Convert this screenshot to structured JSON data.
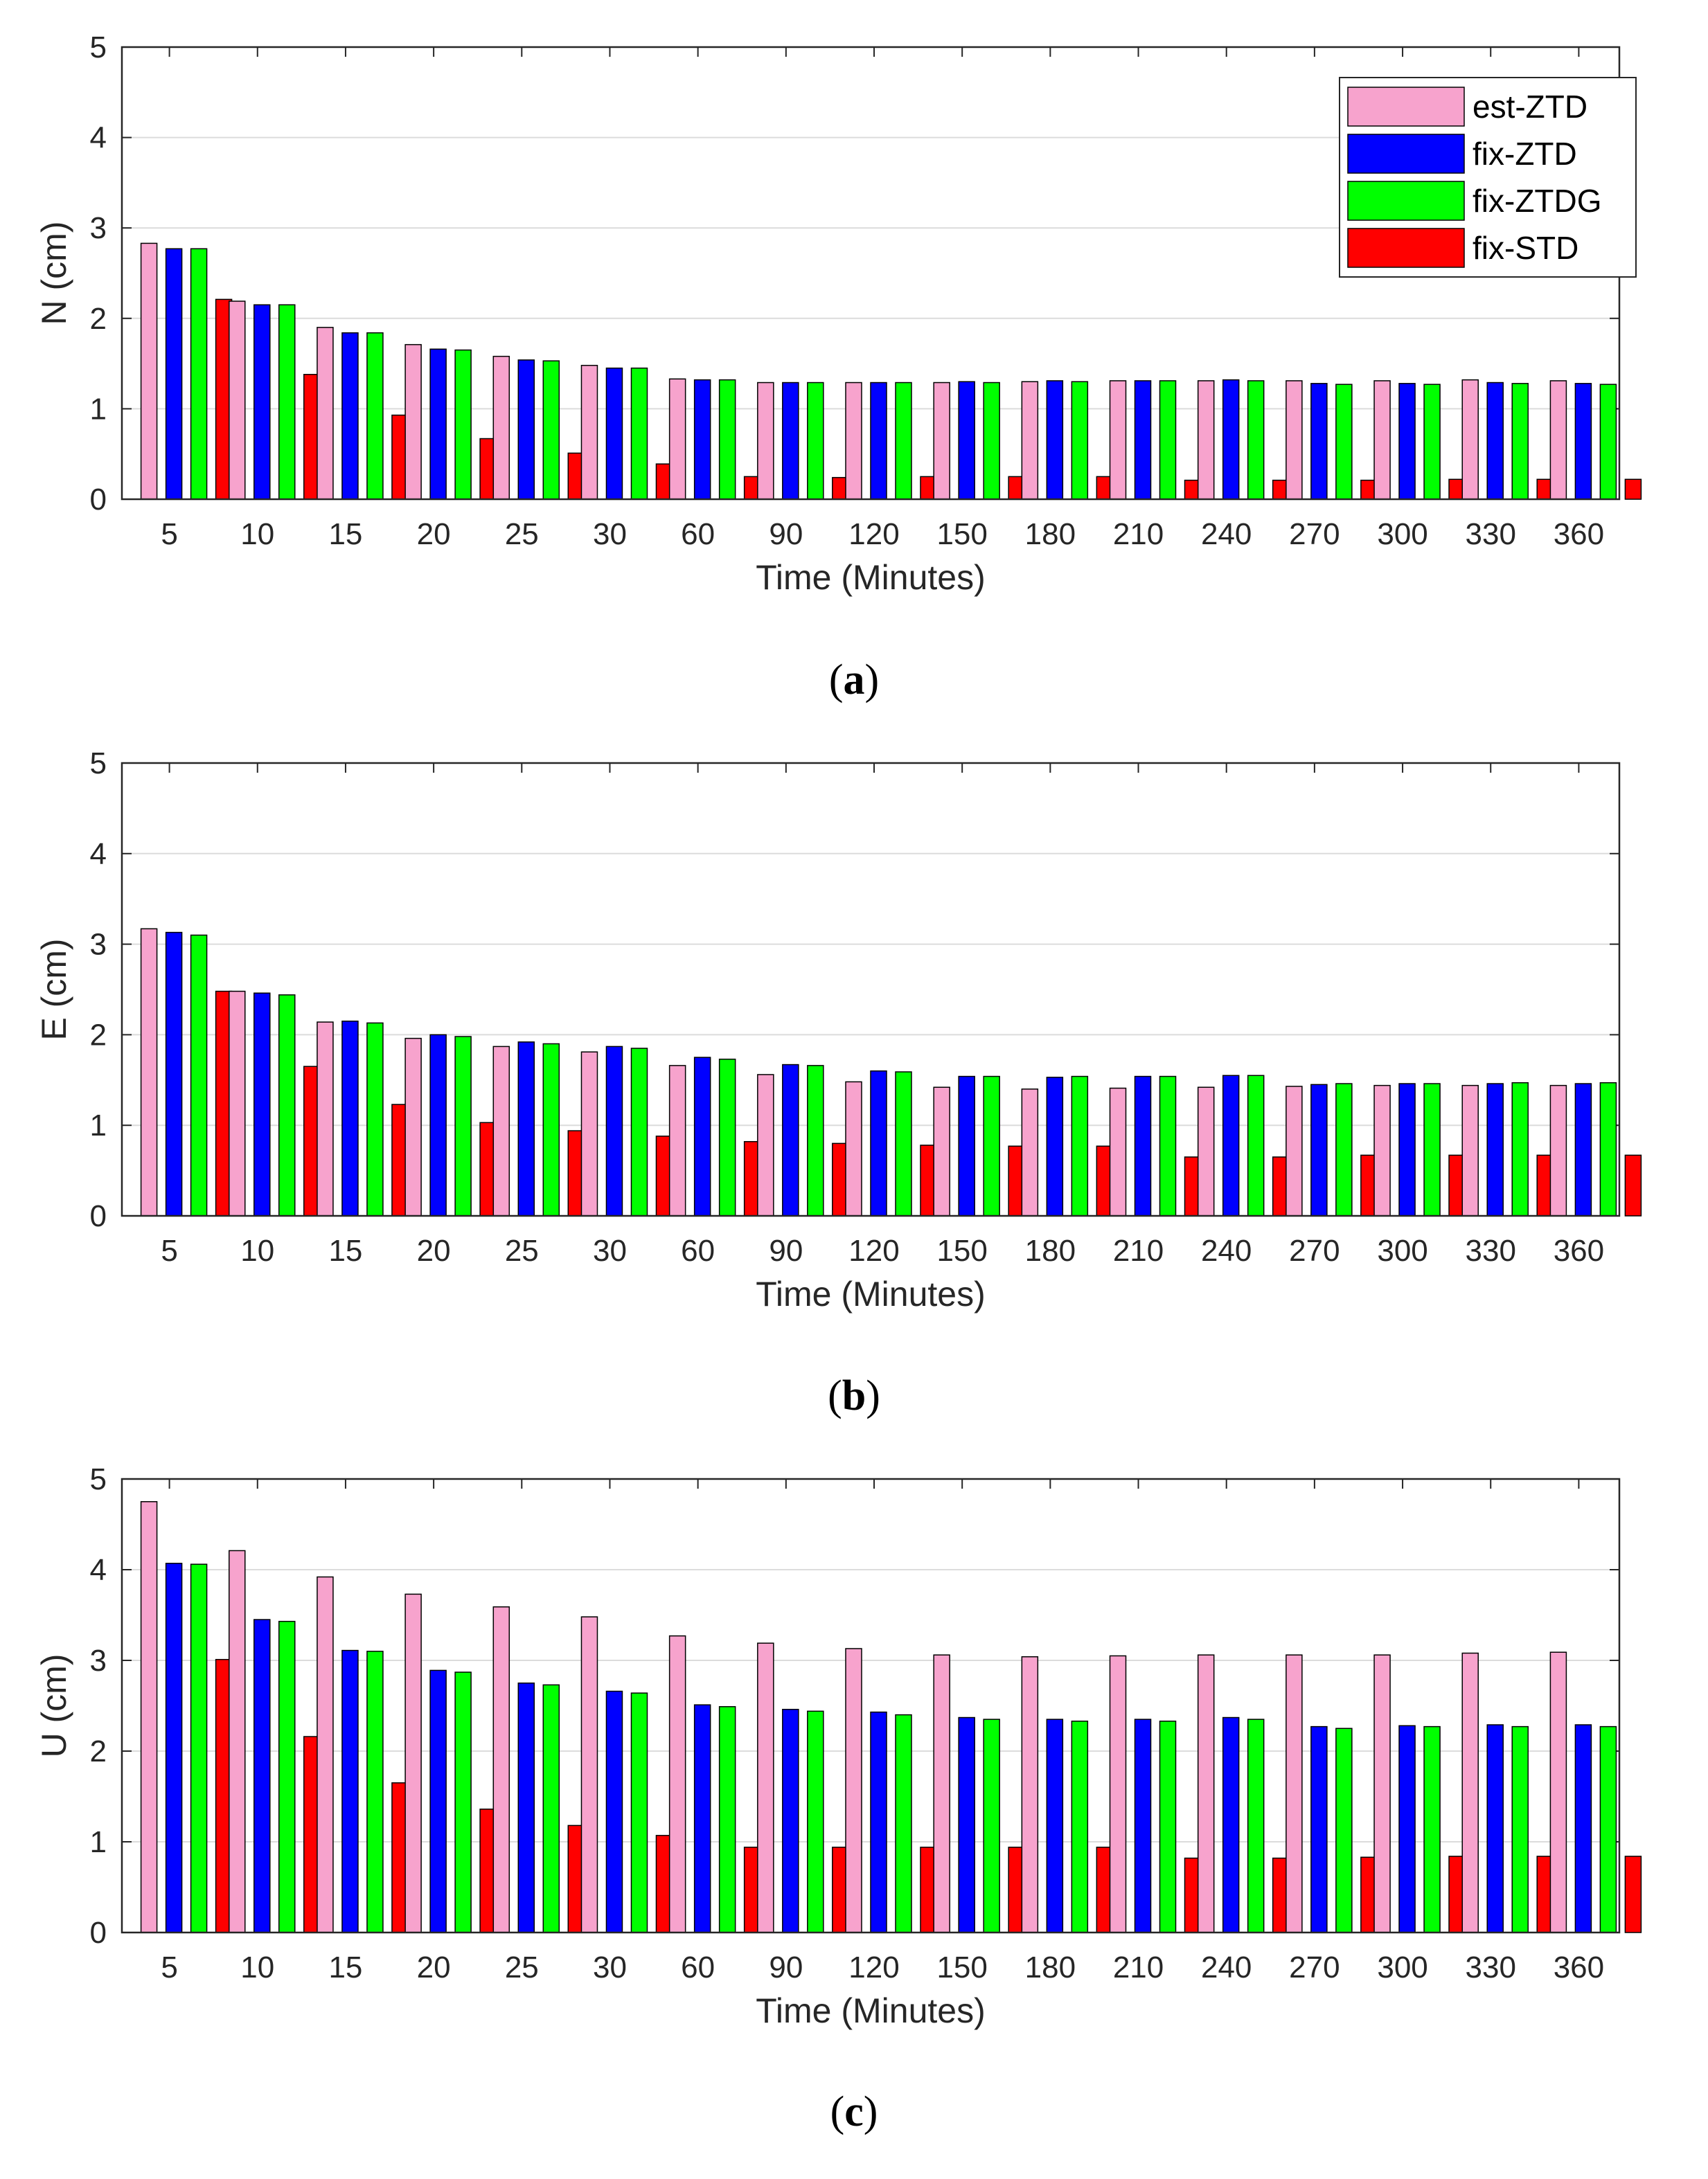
{
  "figure": {
    "legend_labels": [
      "est-ZTD",
      "fix-ZTD",
      "fix-ZTDG",
      "fix-STD"
    ],
    "series_colors": [
      "#f7a3cd",
      "#0000ff",
      "#00ff00",
      "#ff0000"
    ],
    "categories": [
      "5",
      "10",
      "15",
      "20",
      "25",
      "30",
      "60",
      "90",
      "120",
      "150",
      "180",
      "210",
      "240",
      "270",
      "300",
      "330",
      "360"
    ],
    "xlabel": "Time  (Minutes)",
    "yticks": [
      "0",
      "1",
      "2",
      "3",
      "4",
      "5"
    ]
  },
  "chart_data": [
    {
      "type": "bar",
      "panel": "(a)",
      "ylabel": "N (cm)",
      "xlabel": "Time  (Minutes)",
      "ylim": [
        0,
        5
      ],
      "categories": [
        "5",
        "10",
        "15",
        "20",
        "25",
        "30",
        "60",
        "90",
        "120",
        "150",
        "180",
        "210",
        "240",
        "270",
        "300",
        "330",
        "360"
      ],
      "legend_position": "top-right",
      "series": [
        {
          "name": "est-ZTD",
          "values": [
            2.83,
            2.19,
            1.9,
            1.71,
            1.58,
            1.48,
            1.33,
            1.29,
            1.29,
            1.29,
            1.3,
            1.31,
            1.31,
            1.31,
            1.31,
            1.32,
            1.31
          ]
        },
        {
          "name": "fix-ZTD",
          "values": [
            2.77,
            2.15,
            1.84,
            1.66,
            1.54,
            1.45,
            1.32,
            1.29,
            1.29,
            1.3,
            1.31,
            1.31,
            1.32,
            1.28,
            1.28,
            1.29,
            1.28
          ]
        },
        {
          "name": "fix-ZTDG",
          "values": [
            2.77,
            2.15,
            1.84,
            1.65,
            1.53,
            1.45,
            1.32,
            1.29,
            1.29,
            1.29,
            1.3,
            1.31,
            1.31,
            1.27,
            1.27,
            1.28,
            1.27
          ]
        },
        {
          "name": "fix-STD",
          "values": [
            2.21,
            1.38,
            0.93,
            0.67,
            0.51,
            0.39,
            0.25,
            0.24,
            0.25,
            0.25,
            0.25,
            0.21,
            0.21,
            0.21,
            0.22,
            0.22,
            0.22
          ]
        }
      ]
    },
    {
      "type": "bar",
      "panel": "(b)",
      "ylabel": "E (cm)",
      "xlabel": "Time  (Minutes)",
      "ylim": [
        0,
        5
      ],
      "categories": [
        "5",
        "10",
        "15",
        "20",
        "25",
        "30",
        "60",
        "90",
        "120",
        "150",
        "180",
        "210",
        "240",
        "270",
        "300",
        "330",
        "360"
      ],
      "series": [
        {
          "name": "est-ZTD",
          "values": [
            3.17,
            2.48,
            2.14,
            1.96,
            1.87,
            1.81,
            1.66,
            1.56,
            1.48,
            1.42,
            1.4,
            1.41,
            1.42,
            1.43,
            1.44,
            1.44,
            1.44
          ]
        },
        {
          "name": "fix-ZTD",
          "values": [
            3.13,
            2.46,
            2.15,
            2.0,
            1.92,
            1.87,
            1.75,
            1.67,
            1.6,
            1.54,
            1.53,
            1.54,
            1.55,
            1.45,
            1.46,
            1.46,
            1.46
          ]
        },
        {
          "name": "fix-ZTDG",
          "values": [
            3.1,
            2.44,
            2.13,
            1.98,
            1.9,
            1.85,
            1.73,
            1.66,
            1.59,
            1.54,
            1.54,
            1.54,
            1.55,
            1.46,
            1.46,
            1.47,
            1.47
          ]
        },
        {
          "name": "fix-STD",
          "values": [
            2.48,
            1.65,
            1.23,
            1.03,
            0.94,
            0.88,
            0.82,
            0.8,
            0.78,
            0.77,
            0.77,
            0.65,
            0.65,
            0.67,
            0.67,
            0.67,
            0.67
          ]
        }
      ]
    },
    {
      "type": "bar",
      "panel": "(c)",
      "ylabel": "U (cm)",
      "xlabel": "Time  (Minutes)",
      "ylim": [
        0,
        5
      ],
      "categories": [
        "5",
        "10",
        "15",
        "20",
        "25",
        "30",
        "60",
        "90",
        "120",
        "150",
        "180",
        "210",
        "240",
        "270",
        "300",
        "330",
        "360"
      ],
      "series": [
        {
          "name": "est-ZTD",
          "values": [
            4.75,
            4.21,
            3.92,
            3.73,
            3.59,
            3.48,
            3.27,
            3.19,
            3.13,
            3.06,
            3.04,
            3.05,
            3.06,
            3.06,
            3.06,
            3.08,
            3.09
          ]
        },
        {
          "name": "fix-ZTD",
          "values": [
            4.07,
            3.45,
            3.11,
            2.89,
            2.75,
            2.66,
            2.51,
            2.46,
            2.43,
            2.37,
            2.35,
            2.35,
            2.37,
            2.27,
            2.28,
            2.29,
            2.29
          ]
        },
        {
          "name": "fix-ZTDG",
          "values": [
            4.06,
            3.43,
            3.1,
            2.87,
            2.73,
            2.64,
            2.49,
            2.44,
            2.4,
            2.35,
            2.33,
            2.33,
            2.35,
            2.25,
            2.27,
            2.27,
            2.27
          ]
        },
        {
          "name": "fix-STD",
          "values": [
            3.01,
            2.16,
            1.65,
            1.36,
            1.18,
            1.07,
            0.94,
            0.94,
            0.94,
            0.94,
            0.94,
            0.82,
            0.82,
            0.83,
            0.84,
            0.84,
            0.84
          ]
        }
      ]
    }
  ]
}
